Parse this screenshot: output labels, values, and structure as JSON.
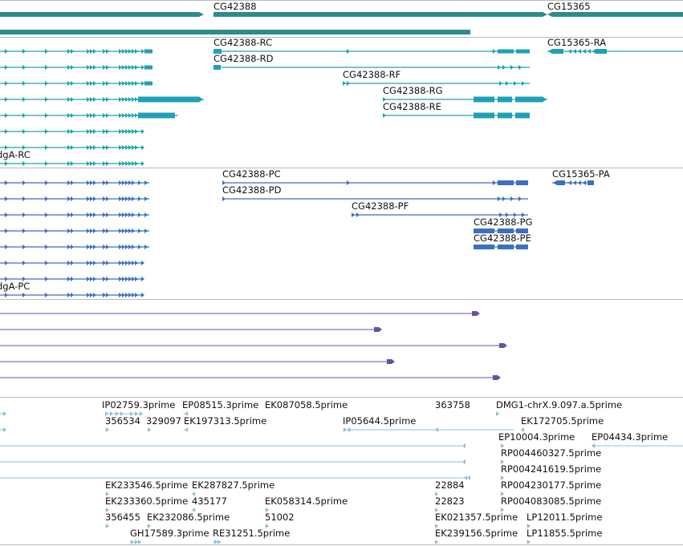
{
  "colors": {
    "gene": "#2e8b8b",
    "transcript_a": "#1fa0b8",
    "transcript_b": "#3a6fc4",
    "aligned_cdna": "#6b4fa0",
    "est": "#8fbfdc",
    "divider": "#b9b9b9"
  },
  "tracks": {
    "genes": {
      "labels": [
        "CG42388",
        "CG15365"
      ]
    },
    "mrna_a": {
      "labels": [
        "CG42388-RC",
        "CG42388-RD",
        "CG42388-RF",
        "CG42388-RG",
        "CG42388-RE",
        "dgA-RC",
        "CG15365-RA"
      ]
    },
    "mrna_b": {
      "labels": [
        "CG42388-PC",
        "CG42388-PD",
        "CG42388-PF",
        "CG42388-PG",
        "CG42388-PE",
        "dgA-PC",
        "CG15365-PA"
      ]
    },
    "ests": {
      "labels": [
        "IP02759.3prime",
        "EP08515.3prime",
        "EK087058.5prime",
        "363758",
        "DMG1-chrX.9.097.a.5prime",
        "356534",
        "329097",
        "EK197313.5prime",
        "IP05644.5prime",
        "EK172705.5prime",
        "EP10004.3prime",
        "EP04434.3prime",
        "RP004460327.5prime",
        "RP004241619.5prime",
        "EK233546.5prime",
        "EK287827.5prime",
        "22884",
        "RP004230177.5prime",
        "EK233360.5prime",
        "435177",
        "EK058314.5prime",
        "22823",
        "RP004083085.5prime",
        "356455",
        "EK232086.5prime",
        "51002",
        "EK021357.5prime",
        "LP12011.5prime",
        "GH17589.3prime",
        "RE31251.5prime",
        "EK239156.5prime",
        "LP11855.5prime"
      ]
    }
  }
}
